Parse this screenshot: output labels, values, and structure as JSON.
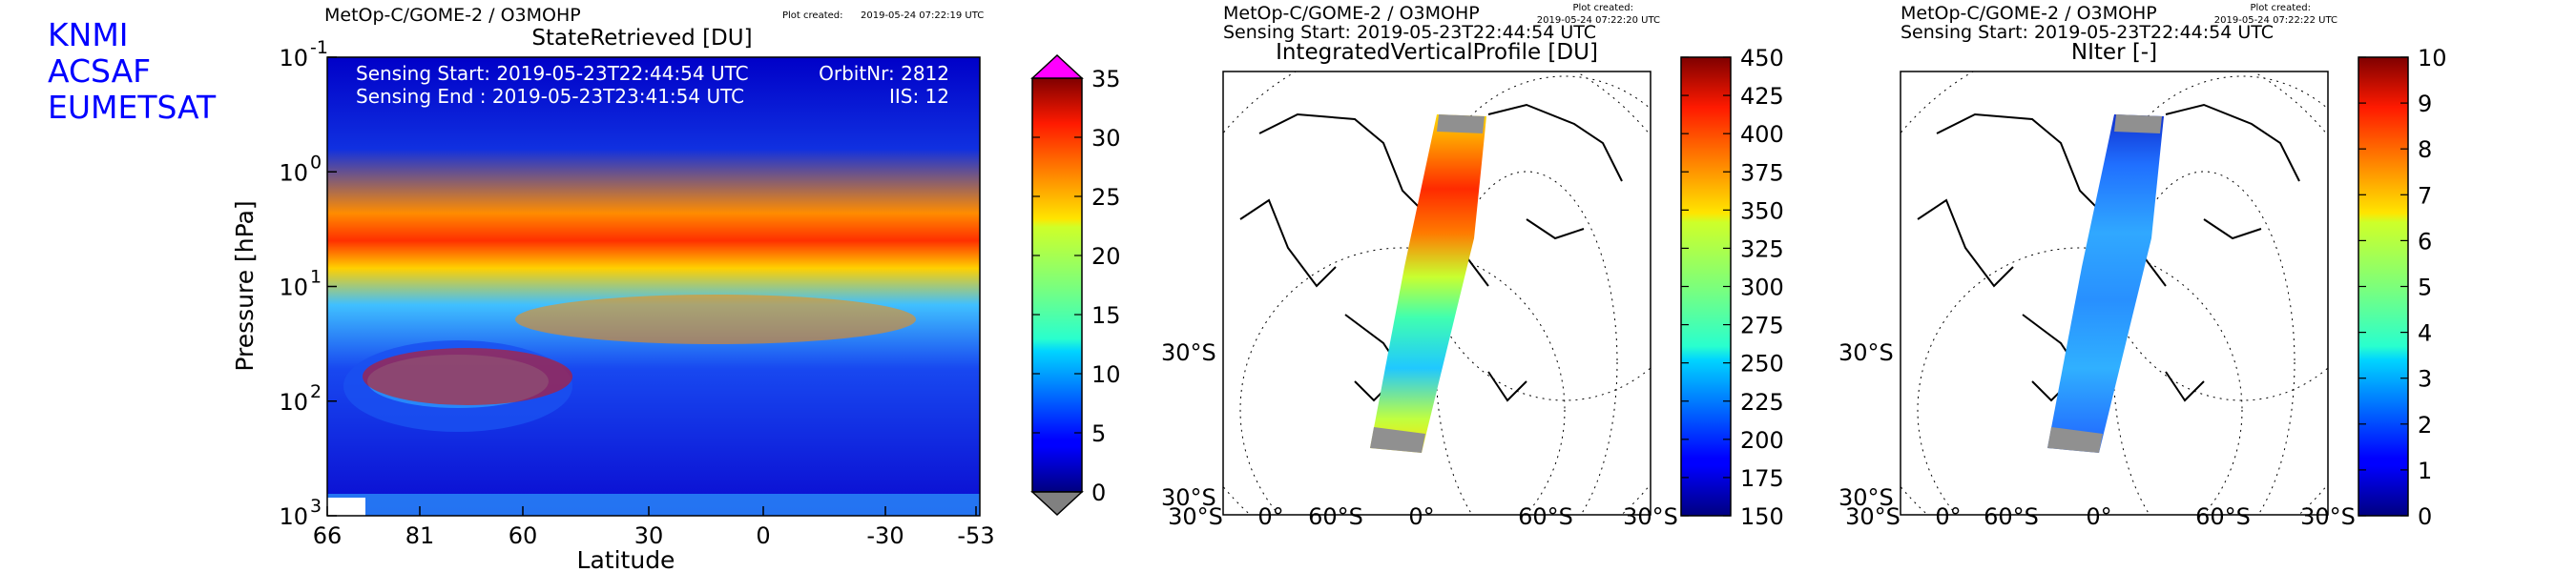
{
  "org": [
    "KNMI",
    "ACSAF",
    "EUMETSAT"
  ],
  "panels": [
    {
      "header": "MetOp-C/GOME-2 / O3MOHP",
      "plot_created_label": "Plot created:",
      "plot_created": "2019-05-24 07:22:19 UTC",
      "title": "StateRetrieved [DU]",
      "sensing_start": "Sensing Start: 2019-05-23T22:44:54 UTC",
      "sensing_end": "Sensing End  : 2019-05-23T23:41:54 UTC",
      "orbit": "OrbitNr: 2812",
      "iis": "IIS: 12"
    },
    {
      "header": "MetOp-C/GOME-2 / O3MOHP",
      "plot_created_label": "Plot created:",
      "plot_created": "2019-05-24 07:22:20 UTC",
      "sensing_start": "Sensing Start: 2019-05-23T22:44:54 UTC",
      "title": "IntegratedVerticalProfile [DU]"
    },
    {
      "header": "MetOp-C/GOME-2 / O3MOHP",
      "plot_created_label": "Plot created:",
      "plot_created": "2019-05-24 07:22:22 UTC",
      "sensing_start": "Sensing Start: 2019-05-23T22:44:54 UTC",
      "title": "NIter [-]"
    }
  ],
  "chart_data": [
    {
      "type": "heatmap",
      "title": "StateRetrieved [DU]",
      "xlabel": "Latitude",
      "ylabel": "Pressure [hPa]",
      "x_tick_labels": [
        "66",
        "81",
        "60",
        "30",
        "0",
        "-30",
        "-53"
      ],
      "y_scale": "log",
      "y_tick_labels": [
        "10",
        "10",
        "10",
        "10",
        "10"
      ],
      "y_tick_exponents": [
        "-1",
        "0",
        "1",
        "2",
        "3"
      ],
      "ylim": [
        1000,
        0.1
      ],
      "colorbar": {
        "min": 0,
        "max": 35,
        "ticks": [
          "0",
          "5",
          "10",
          "15",
          "20",
          "25",
          "30",
          "35"
        ],
        "colormap": "jet",
        "over_color": "#ff00ff",
        "under_color": "#808080"
      }
    },
    {
      "type": "heatmap",
      "title": "IntegratedVerticalProfile [DU]",
      "projection": "orthographic",
      "lat_labels": [
        "30°S",
        "30°S"
      ],
      "lon_labels": [
        "30°S",
        "0°",
        "60°S",
        "0°",
        "60°S",
        "30°S"
      ],
      "colorbar": {
        "min": 150,
        "max": 450,
        "ticks": [
          "150",
          "175",
          "200",
          "225",
          "250",
          "275",
          "300",
          "325",
          "350",
          "375",
          "400",
          "425",
          "450"
        ],
        "colormap": "jet"
      }
    },
    {
      "type": "heatmap",
      "title": "NIter [-]",
      "projection": "orthographic",
      "lat_labels": [
        "30°S",
        "30°S"
      ],
      "lon_labels": [
        "30°S",
        "0°",
        "60°S",
        "0°",
        "60°S",
        "30°S"
      ],
      "colorbar": {
        "min": 0,
        "max": 10,
        "ticks": [
          "0",
          "1",
          "2",
          "3",
          "4",
          "5",
          "6",
          "7",
          "8",
          "9",
          "10"
        ],
        "colormap": "jet"
      }
    }
  ]
}
